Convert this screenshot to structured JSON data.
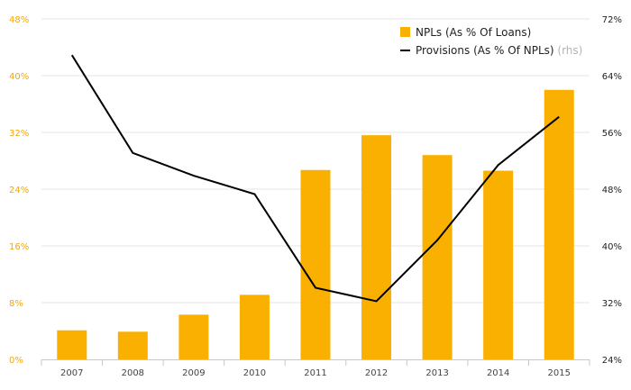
{
  "chart_data": {
    "type": "bar",
    "title": "",
    "xlabel": "",
    "ylabel": "",
    "categories": [
      "2007",
      "2008",
      "2009",
      "2010",
      "2011",
      "2012",
      "2013",
      "2014",
      "2015"
    ],
    "series": [
      {
        "name": "NPLs (As % Of Loans)",
        "type": "bar",
        "axis": "left",
        "color": "#f9b000",
        "values": [
          4.1,
          3.9,
          6.3,
          9.1,
          26.7,
          31.6,
          28.8,
          26.6,
          38.0
        ]
      },
      {
        "name": "Provisions (As % Of NPLs)",
        "legend_note": "(rhs)",
        "type": "line",
        "axis": "right",
        "color": "#000000",
        "values": [
          66.9,
          53.1,
          49.9,
          47.3,
          34.1,
          32.2,
          40.8,
          51.4,
          58.2
        ]
      }
    ],
    "y_left": {
      "lim": [
        0,
        48
      ],
      "ticks": [
        0,
        8,
        16,
        24,
        32,
        40,
        48
      ],
      "tick_labels": [
        "0%",
        "8%",
        "16%",
        "24%",
        "32%",
        "40%",
        "48%"
      ],
      "color": "#f5a800"
    },
    "y_right": {
      "lim": [
        24,
        72
      ],
      "ticks": [
        24,
        32,
        40,
        48,
        56,
        64,
        72
      ],
      "tick_labels": [
        "24%",
        "32%",
        "40%",
        "48%",
        "56%",
        "64%",
        "72%"
      ],
      "color": "#222222"
    },
    "grid": true,
    "legend_position": "top-right"
  }
}
